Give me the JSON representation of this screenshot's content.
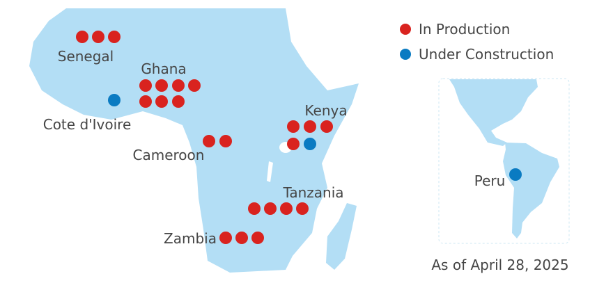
{
  "legend": {
    "in_production": {
      "label": "In Production",
      "color": "#d9231f"
    },
    "under_construction": {
      "label": "Under Construction",
      "color": "#0a7bc2"
    }
  },
  "land_color": "#b3def5",
  "sites": [
    {
      "country": "Senegal",
      "in_production": 3,
      "under_construction": 0
    },
    {
      "country": "Ghana",
      "in_production": 7,
      "under_construction": 0
    },
    {
      "country": "Cote d'Ivoire",
      "in_production": 0,
      "under_construction": 1
    },
    {
      "country": "Cameroon",
      "in_production": 2,
      "under_construction": 0
    },
    {
      "country": "Kenya",
      "in_production": 4,
      "under_construction": 1
    },
    {
      "country": "Tanzania",
      "in_production": 4,
      "under_construction": 0
    },
    {
      "country": "Zambia",
      "in_production": 3,
      "under_construction": 0
    },
    {
      "country": "Peru",
      "in_production": 0,
      "under_construction": 1
    }
  ],
  "date_note": "As of April 28, 2025"
}
